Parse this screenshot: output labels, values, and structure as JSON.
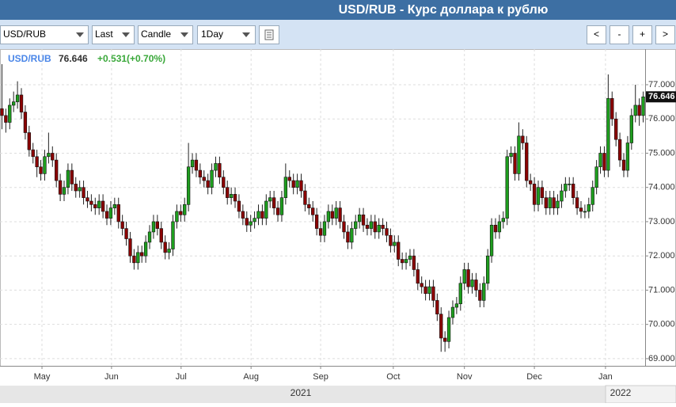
{
  "header": {
    "title": "USD/RUB - Курс доллара к рублю"
  },
  "toolbar": {
    "symbol": "USD/RUB",
    "price": "Last",
    "style": "Candle",
    "interval": "1Day",
    "buttons": [
      "<",
      "-",
      "+",
      ">"
    ]
  },
  "chart_data": {
    "type": "candlestick",
    "legend": {
      "symbol": "USD/RUB",
      "last": 76.646,
      "change": "+0.531(+0.70%)"
    },
    "last": 76.646,
    "up_color": "#1e9e1e",
    "down_color": "#8b0000",
    "grid": true,
    "ylim": [
      68.79,
      78.04
    ],
    "yticks": [
      {
        "value": 69,
        "label": "69.000"
      },
      {
        "value": 70,
        "label": "70.000"
      },
      {
        "value": 71,
        "label": "71.000"
      },
      {
        "value": 72,
        "label": "72.000"
      },
      {
        "value": 73,
        "label": "73.000"
      },
      {
        "value": 74,
        "label": "74.000"
      },
      {
        "value": 75,
        "label": "75.000"
      },
      {
        "value": 76,
        "label": "76.000"
      },
      {
        "value": 77,
        "label": "77.000"
      }
    ],
    "xlim": [
      -0.5,
      165.5
    ],
    "xticks": [
      {
        "value": 10.3,
        "label": "May"
      },
      {
        "value": 28.2,
        "label": "Jun"
      },
      {
        "value": 46.1,
        "label": "Jul"
      },
      {
        "value": 64.1,
        "label": "Aug"
      },
      {
        "value": 82,
        "label": "Sep"
      },
      {
        "value": 100.7,
        "label": "Oct"
      },
      {
        "value": 119,
        "label": "Nov"
      },
      {
        "value": 137,
        "label": "Dec"
      },
      {
        "value": 155.3,
        "label": "Jan"
      }
    ],
    "year_labels": [
      "2021",
      "2022"
    ],
    "candles": [
      [
        76.3,
        77.6,
        75.7,
        76.1
      ],
      [
        76.1,
        76.3,
        75.6,
        75.9
      ],
      [
        75.9,
        76.6,
        75.7,
        76.4
      ],
      [
        76.4,
        76.8,
        76.2,
        76.5
      ],
      [
        76.5,
        77.1,
        76.3,
        76.7
      ],
      [
        76.7,
        76.9,
        76.0,
        76.2
      ],
      [
        76.2,
        76.4,
        75.4,
        75.6
      ],
      [
        75.6,
        75.8,
        74.9,
        75.1
      ],
      [
        75.1,
        75.3,
        74.7,
        74.9
      ],
      [
        74.9,
        75.1,
        74.3,
        74.6
      ],
      [
        74.6,
        74.8,
        74.2,
        74.4
      ],
      [
        74.4,
        75.1,
        74.2,
        74.9
      ],
      [
        74.9,
        75.6,
        74.7,
        75.0
      ],
      [
        75.0,
        75.2,
        74.6,
        74.8
      ],
      [
        74.8,
        75.0,
        74.0,
        74.2
      ],
      [
        74.2,
        74.4,
        73.6,
        73.8
      ],
      [
        73.8,
        74.2,
        73.6,
        74.0
      ],
      [
        74.0,
        74.7,
        73.8,
        74.5
      ],
      [
        74.5,
        74.7,
        73.9,
        74.1
      ],
      [
        74.1,
        74.3,
        73.7,
        73.9
      ],
      [
        73.9,
        74.2,
        73.7,
        74.0
      ],
      [
        74.0,
        74.2,
        73.5,
        73.7
      ],
      [
        73.7,
        73.9,
        73.4,
        73.6
      ],
      [
        73.6,
        73.8,
        73.3,
        73.5
      ],
      [
        73.5,
        73.7,
        73.2,
        73.4
      ],
      [
        73.4,
        73.8,
        73.2,
        73.6
      ],
      [
        73.6,
        73.8,
        73.1,
        73.3
      ],
      [
        73.3,
        73.5,
        72.9,
        73.1
      ],
      [
        73.1,
        73.6,
        72.9,
        73.4
      ],
      [
        73.4,
        73.7,
        73.2,
        73.5
      ],
      [
        73.5,
        73.7,
        72.8,
        73.0
      ],
      [
        73.0,
        73.2,
        72.6,
        72.8
      ],
      [
        72.8,
        73.0,
        72.3,
        72.5
      ],
      [
        72.5,
        72.7,
        71.8,
        72.0
      ],
      [
        72.0,
        72.2,
        71.6,
        71.8
      ],
      [
        71.8,
        72.3,
        71.6,
        72.1
      ],
      [
        72.1,
        72.3,
        71.8,
        72.0
      ],
      [
        72.0,
        72.6,
        71.8,
        72.4
      ],
      [
        72.4,
        72.9,
        72.2,
        72.7
      ],
      [
        72.7,
        73.2,
        72.5,
        73.0
      ],
      [
        73.0,
        73.2,
        72.6,
        72.8
      ],
      [
        72.8,
        73.0,
        72.2,
        72.4
      ],
      [
        72.4,
        72.6,
        71.9,
        72.1
      ],
      [
        72.1,
        72.4,
        71.9,
        72.2
      ],
      [
        72.2,
        73.2,
        72.0,
        73.0
      ],
      [
        73.0,
        73.5,
        72.8,
        73.3
      ],
      [
        73.3,
        73.5,
        73.0,
        73.2
      ],
      [
        73.2,
        73.7,
        73.0,
        73.5
      ],
      [
        73.5,
        75.3,
        73.3,
        74.6
      ],
      [
        74.6,
        75.0,
        74.4,
        74.8
      ],
      [
        74.8,
        75.0,
        74.3,
        74.5
      ],
      [
        74.5,
        74.7,
        74.1,
        74.3
      ],
      [
        74.3,
        74.5,
        74.0,
        74.2
      ],
      [
        74.2,
        74.4,
        73.8,
        74.0
      ],
      [
        74.0,
        74.7,
        73.8,
        74.5
      ],
      [
        74.5,
        74.9,
        74.3,
        74.7
      ],
      [
        74.7,
        74.9,
        74.1,
        74.3
      ],
      [
        74.3,
        74.5,
        73.8,
        74.0
      ],
      [
        74.0,
        74.2,
        73.5,
        73.7
      ],
      [
        73.7,
        74.0,
        73.5,
        73.8
      ],
      [
        73.8,
        74.0,
        73.4,
        73.6
      ],
      [
        73.6,
        73.8,
        73.1,
        73.3
      ],
      [
        73.3,
        73.5,
        72.9,
        73.1
      ],
      [
        73.1,
        73.3,
        72.7,
        72.9
      ],
      [
        72.9,
        73.2,
        72.7,
        73.0
      ],
      [
        73.0,
        73.3,
        72.8,
        73.1
      ],
      [
        73.1,
        73.5,
        72.9,
        73.3
      ],
      [
        73.3,
        73.5,
        72.9,
        73.1
      ],
      [
        73.1,
        73.8,
        72.9,
        73.6
      ],
      [
        73.6,
        73.9,
        73.4,
        73.7
      ],
      [
        73.7,
        73.9,
        73.2,
        73.4
      ],
      [
        73.4,
        73.6,
        73.0,
        73.2
      ],
      [
        73.2,
        73.9,
        73.0,
        73.7
      ],
      [
        73.7,
        74.7,
        73.5,
        74.3
      ],
      [
        74.3,
        74.5,
        74.0,
        74.2
      ],
      [
        74.2,
        74.4,
        73.8,
        74.0
      ],
      [
        74.0,
        74.4,
        73.8,
        74.2
      ],
      [
        74.2,
        74.4,
        73.7,
        73.9
      ],
      [
        73.9,
        74.1,
        73.3,
        73.5
      ],
      [
        73.5,
        73.7,
        73.2,
        73.4
      ],
      [
        73.4,
        73.6,
        73.0,
        73.2
      ],
      [
        73.2,
        73.4,
        72.6,
        72.8
      ],
      [
        72.8,
        73.0,
        72.4,
        72.6
      ],
      [
        72.6,
        73.2,
        72.4,
        73.0
      ],
      [
        73.0,
        73.5,
        72.8,
        73.3
      ],
      [
        73.3,
        73.5,
        72.9,
        73.1
      ],
      [
        73.1,
        73.6,
        72.9,
        73.4
      ],
      [
        73.4,
        73.6,
        72.8,
        73.0
      ],
      [
        73.0,
        73.2,
        72.5,
        72.7
      ],
      [
        72.7,
        72.9,
        72.2,
        72.4
      ],
      [
        72.4,
        73.0,
        72.2,
        72.8
      ],
      [
        72.8,
        73.2,
        72.6,
        73.0
      ],
      [
        73.0,
        73.4,
        72.8,
        73.2
      ],
      [
        73.2,
        73.4,
        72.7,
        72.9
      ],
      [
        72.9,
        73.1,
        72.6,
        72.8
      ],
      [
        72.8,
        73.2,
        72.6,
        73.0
      ],
      [
        73.0,
        73.2,
        72.5,
        72.7
      ],
      [
        72.7,
        73.1,
        72.5,
        72.9
      ],
      [
        72.9,
        73.1,
        72.6,
        72.8
      ],
      [
        72.8,
        73.0,
        72.4,
        72.6
      ],
      [
        72.6,
        72.8,
        72.1,
        72.3
      ],
      [
        72.3,
        72.6,
        72.1,
        72.4
      ],
      [
        72.4,
        72.6,
        71.7,
        71.9
      ],
      [
        71.9,
        72.1,
        71.6,
        71.8
      ],
      [
        71.8,
        72.1,
        71.6,
        71.9
      ],
      [
        71.9,
        72.2,
        71.7,
        72.0
      ],
      [
        72.0,
        72.2,
        71.4,
        71.6
      ],
      [
        71.6,
        71.8,
        71.0,
        71.2
      ],
      [
        71.2,
        71.4,
        70.9,
        71.1
      ],
      [
        71.1,
        71.3,
        70.7,
        70.9
      ],
      [
        70.9,
        71.3,
        70.7,
        71.1
      ],
      [
        71.1,
        71.3,
        70.5,
        70.7
      ],
      [
        70.7,
        70.9,
        70.1,
        70.3
      ],
      [
        70.3,
        70.5,
        69.2,
        69.6
      ],
      [
        69.6,
        69.8,
        69.2,
        69.5
      ],
      [
        69.5,
        70.4,
        69.3,
        70.2
      ],
      [
        70.2,
        70.7,
        70.0,
        70.5
      ],
      [
        70.5,
        70.8,
        70.3,
        70.6
      ],
      [
        70.6,
        71.4,
        70.4,
        71.2
      ],
      [
        71.2,
        71.8,
        71.0,
        71.6
      ],
      [
        71.6,
        71.8,
        70.9,
        71.1
      ],
      [
        71.1,
        71.5,
        70.9,
        71.3
      ],
      [
        71.3,
        71.5,
        70.8,
        71.0
      ],
      [
        71.0,
        71.2,
        70.5,
        70.7
      ],
      [
        70.7,
        71.4,
        70.5,
        71.2
      ],
      [
        71.2,
        72.2,
        71.0,
        72.0
      ],
      [
        72.0,
        73.1,
        71.8,
        72.9
      ],
      [
        72.9,
        73.1,
        72.5,
        72.7
      ],
      [
        72.7,
        73.2,
        72.5,
        73.0
      ],
      [
        73.0,
        73.3,
        72.8,
        73.1
      ],
      [
        73.1,
        75.1,
        72.9,
        74.9
      ],
      [
        74.9,
        75.2,
        74.7,
        75.0
      ],
      [
        75.0,
        75.2,
        74.2,
        74.4
      ],
      [
        74.4,
        75.9,
        74.2,
        75.5
      ],
      [
        75.5,
        75.7,
        75.1,
        75.3
      ],
      [
        75.3,
        75.5,
        74.0,
        74.2
      ],
      [
        74.2,
        74.4,
        73.9,
        74.1
      ],
      [
        74.1,
        74.3,
        73.3,
        73.5
      ],
      [
        73.5,
        74.2,
        73.3,
        74.0
      ],
      [
        74.0,
        74.2,
        73.5,
        73.7
      ],
      [
        73.7,
        73.9,
        73.2,
        73.4
      ],
      [
        73.4,
        73.9,
        73.2,
        73.7
      ],
      [
        73.7,
        73.9,
        73.2,
        73.4
      ],
      [
        73.4,
        73.8,
        73.2,
        73.6
      ],
      [
        73.6,
        74.1,
        73.4,
        73.9
      ],
      [
        73.9,
        74.3,
        73.7,
        74.1
      ],
      [
        74.1,
        74.3,
        73.9,
        74.1
      ],
      [
        74.1,
        74.3,
        73.5,
        73.7
      ],
      [
        73.7,
        73.9,
        73.2,
        73.4
      ],
      [
        73.4,
        73.6,
        73.1,
        73.3
      ],
      [
        73.3,
        73.5,
        73.1,
        73.3
      ],
      [
        73.3,
        73.7,
        73.1,
        73.5
      ],
      [
        73.5,
        74.2,
        73.3,
        74.0
      ],
      [
        74.0,
        74.8,
        73.8,
        74.6
      ],
      [
        74.6,
        75.2,
        74.4,
        75.0
      ],
      [
        75.0,
        75.2,
        74.3,
        74.5
      ],
      [
        74.5,
        77.3,
        74.3,
        76.6
      ],
      [
        76.6,
        76.8,
        75.8,
        76.0
      ],
      [
        76.0,
        76.2,
        75.2,
        75.4
      ],
      [
        75.4,
        75.6,
        74.6,
        74.8
      ],
      [
        74.8,
        75.0,
        74.3,
        74.5
      ],
      [
        74.5,
        75.5,
        74.3,
        75.3
      ],
      [
        75.3,
        76.3,
        75.1,
        76.1
      ],
      [
        76.1,
        77.0,
        75.9,
        76.4
      ],
      [
        76.4,
        76.6,
        75.8,
        76.1
      ],
      [
        76.1,
        76.8,
        75.9,
        76.646
      ]
    ]
  }
}
